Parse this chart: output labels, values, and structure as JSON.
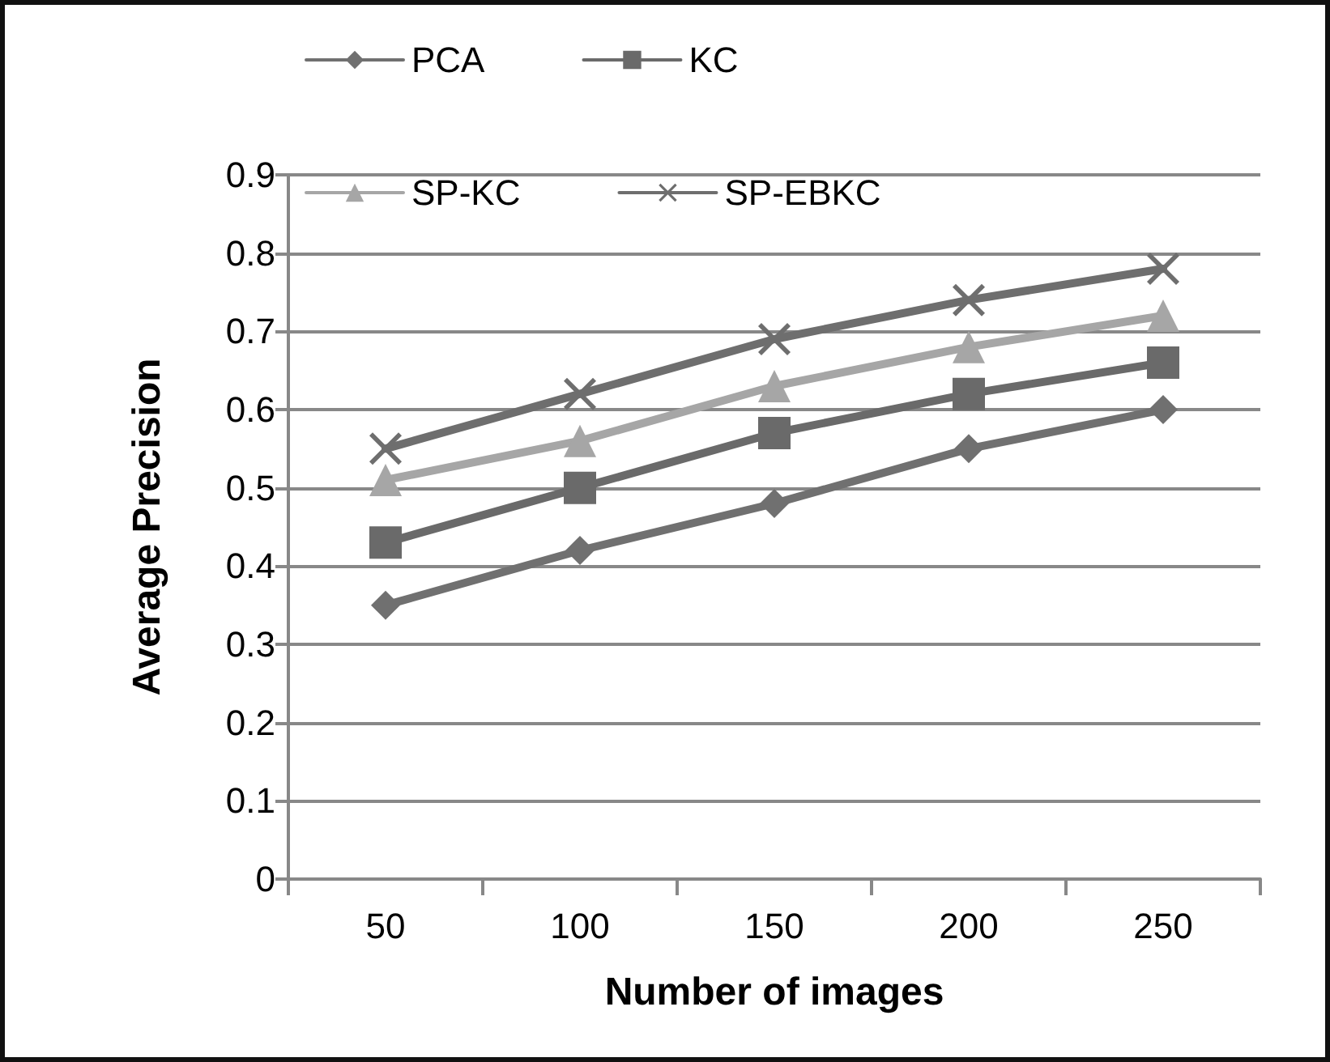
{
  "chart_data": {
    "type": "line",
    "xlabel": "Number of images",
    "ylabel": "Average Precision",
    "categories": [
      "50",
      "100",
      "150",
      "200",
      "250"
    ],
    "series": [
      {
        "name": "PCA",
        "color": "#707070",
        "marker": "diamond",
        "values": [
          0.35,
          0.42,
          0.48,
          0.55,
          0.6
        ]
      },
      {
        "name": "KC",
        "color": "#6a6a6a",
        "marker": "square",
        "values": [
          0.43,
          0.5,
          0.57,
          0.62,
          0.66
        ]
      },
      {
        "name": "SP-KC",
        "color": "#a6a6a6",
        "marker": "triangle",
        "values": [
          0.51,
          0.56,
          0.63,
          0.68,
          0.72
        ]
      },
      {
        "name": "SP-EBKC",
        "color": "#6e6e6e",
        "marker": "cross",
        "values": [
          0.55,
          0.62,
          0.69,
          0.74,
          0.78
        ]
      }
    ],
    "ylim": [
      0,
      0.9
    ],
    "yticks": [
      0,
      0.1,
      0.2,
      0.3,
      0.4,
      0.5,
      0.6,
      0.7,
      0.8,
      0.9
    ],
    "grid": "y",
    "legend": "top",
    "line_style": "solid"
  }
}
